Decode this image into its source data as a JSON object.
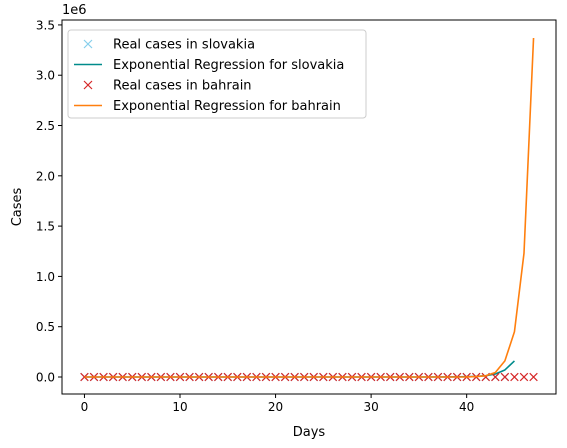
{
  "chart_data": {
    "type": "line",
    "title": "",
    "xlabel": "Days",
    "ylabel": "Cases",
    "y_offset_label": "1e6",
    "xlim": [
      -2.35,
      49.35
    ],
    "ylim": [
      -0.169,
      3.549
    ],
    "y_scale_factor": 1000000,
    "x_ticks": [
      0,
      10,
      20,
      30,
      40
    ],
    "x_tick_labels": [
      "0",
      "10",
      "20",
      "30",
      "40"
    ],
    "y_ticks": [
      0.0,
      0.5,
      1.0,
      1.5,
      2.0,
      2.5,
      3.0,
      3.5
    ],
    "y_tick_labels": [
      "0.0",
      "0.5",
      "1.0",
      "1.5",
      "2.0",
      "2.5",
      "3.0",
      "3.5"
    ],
    "grid": false,
    "legend_position": "top-left",
    "series": [
      {
        "name": "Real cases in slovakia",
        "kind": "marker",
        "marker": "x",
        "color": "#87ceeb",
        "x": [
          0,
          1,
          2,
          3,
          4,
          5,
          6,
          7,
          8,
          9,
          10,
          11,
          12,
          13,
          14,
          15,
          16,
          17,
          18,
          19,
          20,
          21,
          22,
          23,
          24,
          25,
          26,
          27,
          28,
          29,
          30,
          31,
          32,
          33,
          34,
          35,
          36,
          37,
          38,
          39,
          40,
          41,
          42,
          43,
          44
        ],
        "y": [
          0,
          0,
          0,
          0,
          0,
          0,
          0,
          0,
          0,
          0,
          0,
          0,
          0,
          0,
          0,
          0,
          0,
          0,
          0,
          0,
          0,
          0,
          0,
          0,
          0,
          0,
          0,
          0,
          0,
          0,
          0,
          0,
          0,
          0,
          0,
          0,
          0,
          0,
          0,
          0,
          0,
          0,
          0,
          0,
          0
        ]
      },
      {
        "name": "Exponential Regression for slovakia",
        "kind": "line",
        "color": "#008b8b",
        "x": [
          0,
          5,
          10,
          15,
          20,
          25,
          30,
          35,
          38,
          40,
          41,
          42,
          43,
          44,
          45
        ],
        "y": [
          0,
          0,
          0,
          0,
          0,
          0,
          0,
          0,
          0.001,
          0.003,
          0.006,
          0.013,
          0.03,
          0.07,
          0.16
        ]
      },
      {
        "name": "Real cases in bahrain",
        "kind": "marker",
        "marker": "x",
        "color": "#d62728",
        "x": [
          0,
          1,
          2,
          3,
          4,
          5,
          6,
          7,
          8,
          9,
          10,
          11,
          12,
          13,
          14,
          15,
          16,
          17,
          18,
          19,
          20,
          21,
          22,
          23,
          24,
          25,
          26,
          27,
          28,
          29,
          30,
          31,
          32,
          33,
          34,
          35,
          36,
          37,
          38,
          39,
          40,
          41,
          42,
          43,
          44,
          45,
          46,
          47
        ],
        "y": [
          0,
          0,
          0,
          0,
          0,
          0,
          0,
          0,
          0,
          0,
          0,
          0,
          0,
          0,
          0,
          0,
          0,
          0,
          0,
          0,
          0,
          0,
          0,
          0,
          0,
          0,
          0,
          0,
          0,
          0,
          0,
          0,
          0,
          0,
          0,
          0,
          0,
          0,
          0,
          0,
          0,
          0,
          0,
          0,
          0,
          0,
          0,
          0
        ]
      },
      {
        "name": "Exponential Regression for bahrain",
        "kind": "line",
        "color": "#ff7f0e",
        "x": [
          0,
          5,
          10,
          15,
          20,
          25,
          30,
          35,
          38,
          40,
          41,
          42,
          43,
          44,
          45,
          46,
          47
        ],
        "y": [
          0,
          0,
          0,
          0,
          0,
          0,
          0,
          0,
          0,
          0.001,
          0.004,
          0.012,
          0.045,
          0.16,
          0.45,
          1.23,
          3.37
        ]
      }
    ]
  }
}
